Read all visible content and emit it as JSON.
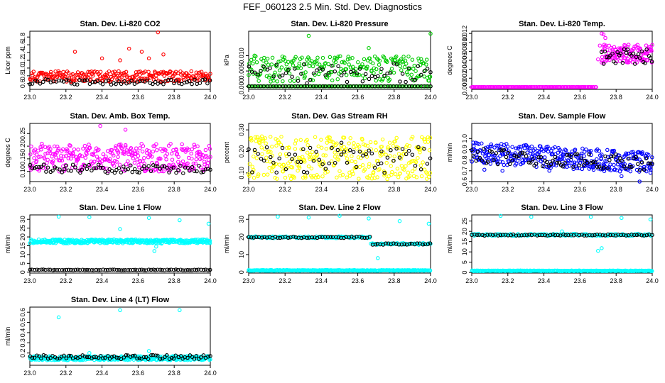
{
  "page": {
    "title": "FEF_060123  2.5 Min. Std. Dev. Diagnostics"
  },
  "colors": {
    "black": "#000000",
    "red": "#ff0000",
    "green": "#00cc00",
    "magenta": "#ff00ff",
    "yellow": "#ffff00",
    "blue": "#0000ff",
    "cyan": "#00ffff"
  },
  "chart_data": [
    {
      "type": "scatter",
      "title": "Stan. Dev. Li-820 CO2",
      "ylabel": "Licor ppm",
      "xlim": [
        23.0,
        24.0
      ],
      "ylim": [
        0.45,
        1.95
      ],
      "xticks": [
        "23.0",
        "23.2",
        "23.4",
        "23.6",
        "23.8",
        "24.0"
      ],
      "yticks": [
        "0.6",
        "0.8",
        "1.0",
        "1.2",
        "1.4",
        "1.6",
        "1.8"
      ],
      "series": [
        {
          "color": "red",
          "n": 260,
          "base": 0.78,
          "spread": 0.28,
          "seed": 11,
          "outliers": [
            [
              23.25,
              1.42
            ],
            [
              23.4,
              1.25
            ],
            [
              23.5,
              1.2
            ],
            [
              23.55,
              1.5
            ],
            [
              23.62,
              1.42
            ],
            [
              23.66,
              1.25
            ],
            [
              23.71,
              1.92
            ],
            [
              23.74,
              1.35
            ]
          ]
        },
        {
          "color": "black",
          "n": 70,
          "base": 0.64,
          "spread": 0.14,
          "seed": 12,
          "outliers": []
        }
      ]
    },
    {
      "type": "scatter",
      "title": "Stan. Dev. Li-820 Pressure",
      "ylabel": "kPa",
      "xlim": [
        23.0,
        24.0
      ],
      "ylim": [
        -0.001,
        0.018
      ],
      "xticks": [
        "23.0",
        "23.2",
        "23.4",
        "23.6",
        "23.8",
        "24.0"
      ],
      "yticks": [
        "0.000",
        "0.005",
        "0.010"
      ],
      "series": [
        {
          "color": "green",
          "n": 240,
          "base": 0.0058,
          "spread": 0.0085,
          "seed": 21,
          "outliers": [
            [
              23.33,
              0.0165
            ],
            [
              23.66,
              0.0125
            ],
            [
              24.0,
              0.0172
            ]
          ]
        },
        {
          "color": "green",
          "n": 120,
          "base": 0.0,
          "spread": 0.0,
          "seed": 22,
          "outliers": []
        },
        {
          "color": "black",
          "n": 60,
          "base": 0.0042,
          "spread": 0.0065,
          "seed": 23,
          "outliers": []
        },
        {
          "color": "black",
          "n": 60,
          "base": 0.0,
          "spread": 0.0,
          "seed": 24,
          "outliers": []
        }
      ]
    },
    {
      "type": "scatter",
      "title": "Stan. Dev. Li-820 Temp.",
      "ylabel": "degrees C",
      "xlim": [
        23.0,
        24.0
      ],
      "ylim": [
        -0.0005,
        0.0125
      ],
      "xticks": [
        "23.0",
        "23.2",
        "23.4",
        "23.6",
        "23.8",
        "24.0"
      ],
      "yticks": [
        "0.000",
        "0.002",
        "0.004",
        "0.006",
        "0.008",
        "0.010",
        "0.012"
      ],
      "series": [
        {
          "color": "magenta",
          "n": 110,
          "base": 0.0,
          "spread": 0.0,
          "seed": 31,
          "xmax": 23.69,
          "outliers": []
        },
        {
          "color": "magenta",
          "n": 130,
          "base": 0.0075,
          "spread": 0.004,
          "seed": 32,
          "xmin": 23.72,
          "outliers": [
            [
              23.7,
              0.0062
            ],
            [
              23.71,
              0.0093
            ],
            [
              23.72,
              0.012
            ],
            [
              23.73,
              0.0118
            ],
            [
              23.74,
              0.011
            ]
          ]
        },
        {
          "color": "black",
          "n": 30,
          "base": 0.0068,
          "spread": 0.0035,
          "seed": 33,
          "xmin": 23.72,
          "outliers": []
        }
      ]
    },
    {
      "type": "scatter",
      "title": "Stan. Dev. Amb. Box Temp.",
      "ylabel": "degrees C",
      "xlim": [
        23.0,
        24.0
      ],
      "ylim": [
        0.06,
        0.29
      ],
      "xticks": [
        "23.0",
        "23.2",
        "23.4",
        "23.6",
        "23.8",
        "24.0"
      ],
      "yticks": [
        "0.10",
        "0.15",
        "0.20",
        "0.25"
      ],
      "series": [
        {
          "color": "magenta",
          "n": 330,
          "base": 0.155,
          "spread": 0.11,
          "seed": 41,
          "outliers": [
            [
              23.39,
              0.28
            ],
            [
              23.53,
              0.265
            ]
          ]
        },
        {
          "color": "black",
          "n": 80,
          "base": 0.11,
          "spread": 0.035,
          "seed": 42,
          "outliers": []
        }
      ]
    },
    {
      "type": "scatter",
      "title": "Stan. Dev. Gas Stream RH",
      "ylabel": "percent",
      "xlim": [
        23.0,
        24.0
      ],
      "ylim": [
        0.06,
        0.33
      ],
      "xticks": [
        "23.0",
        "23.2",
        "23.4",
        "23.6",
        "23.8",
        "24.0"
      ],
      "yticks": [
        "0.10",
        "0.20",
        "0.30"
      ],
      "series": [
        {
          "color": "yellow",
          "n": 320,
          "base": 0.17,
          "spread": 0.2,
          "seed": 51,
          "outliers": []
        },
        {
          "color": "black",
          "n": 60,
          "base": 0.16,
          "spread": 0.12,
          "seed": 52,
          "outliers": [
            [
              23.3,
              0.21
            ],
            [
              23.51,
              0.24
            ],
            [
              23.73,
              0.2
            ]
          ]
        }
      ]
    },
    {
      "type": "scatter",
      "title": "Stan. Dev. Sample Flow",
      "ylabel": "ml/min",
      "xlim": [
        23.0,
        24.0
      ],
      "ylim": [
        0.6,
        1.14
      ],
      "xticks": [
        "23.0",
        "23.2",
        "23.4",
        "23.6",
        "23.8",
        "24.0"
      ],
      "yticks": [
        "0.6",
        "0.7",
        "0.8",
        "0.9",
        "1.0"
      ],
      "series": [
        {
          "color": "blue",
          "n": 360,
          "base": 0.87,
          "spread": 0.2,
          "seed": 61,
          "slope": -0.1,
          "outliers": [
            [
              23.07,
              0.71
            ],
            [
              23.17,
              0.7
            ],
            [
              23.43,
              0.7
            ],
            [
              23.83,
              0.65
            ],
            [
              23.93,
              0.6
            ]
          ]
        },
        {
          "color": "black",
          "n": 90,
          "base": 0.84,
          "spread": 0.14,
          "seed": 62,
          "slope": -0.07,
          "outliers": []
        }
      ]
    },
    {
      "type": "scatter",
      "title": "Stan. Dev. Line 1 Flow",
      "ylabel": "ml/min",
      "xlim": [
        23.0,
        24.0
      ],
      "ylim": [
        -0.5,
        32.5
      ],
      "xticks": [
        "23.0",
        "23.2",
        "23.4",
        "23.6",
        "23.8",
        "24.0"
      ],
      "yticks": [
        "0",
        "5",
        "10",
        "15",
        "20",
        "25",
        "30"
      ],
      "series": [
        {
          "color": "cyan",
          "n": 380,
          "base": 17.5,
          "spread": 2.2,
          "seed": 71,
          "outliers": [
            [
              23.16,
              31.5
            ],
            [
              23.33,
              31.2
            ],
            [
              23.5,
              24.5
            ],
            [
              23.66,
              30.8
            ],
            [
              23.69,
              12.0
            ],
            [
              23.7,
              14.5
            ],
            [
              23.73,
              16.2
            ],
            [
              23.83,
              29.5
            ],
            [
              23.99,
              27.5
            ]
          ]
        },
        {
          "color": "black",
          "n": 80,
          "base": 1.3,
          "spread": 0.4,
          "seed": 72,
          "outliers": []
        }
      ]
    },
    {
      "type": "scatter",
      "title": "Stan. Dev. Line 2 Flow",
      "ylabel": "ml/min",
      "xlim": [
        23.0,
        24.0
      ],
      "ylim": [
        -0.5,
        32.5
      ],
      "xticks": [
        "23.0",
        "23.2",
        "23.4",
        "23.6",
        "23.8",
        "24.0"
      ],
      "yticks": [
        "0",
        "10",
        "20",
        "30"
      ],
      "series": [
        {
          "color": "cyan",
          "n": 300,
          "base": 1.0,
          "spread": 0.4,
          "seed": 81,
          "outliers": []
        },
        {
          "color": "cyan",
          "n": 160,
          "base": 19.8,
          "spread": 1.0,
          "seed": 82,
          "step": [
            23.67,
            16.0
          ],
          "outliers": [
            [
              23.16,
              31.5
            ],
            [
              23.33,
              31.0
            ],
            [
              23.5,
              32.0
            ],
            [
              23.66,
              30.5
            ],
            [
              23.71,
              8.0
            ],
            [
              23.83,
              29.0
            ],
            [
              23.99,
              27.5
            ]
          ]
        },
        {
          "color": "black",
          "n": 70,
          "base": 19.8,
          "spread": 0.8,
          "seed": 83,
          "step": [
            23.67,
            16.0
          ],
          "outliers": []
        }
      ]
    },
    {
      "type": "scatter",
      "title": "Stan. Dev. Line 3 Flow",
      "ylabel": "ml/min",
      "xlim": [
        23.0,
        24.0
      ],
      "ylim": [
        -0.3,
        28
      ],
      "xticks": [
        "23.0",
        "23.2",
        "23.4",
        "23.6",
        "23.8",
        "24.0"
      ],
      "yticks": [
        "0",
        "5",
        "10",
        "15",
        "20",
        "25"
      ],
      "series": [
        {
          "color": "cyan",
          "n": 300,
          "base": 0.8,
          "spread": 0.3,
          "seed": 91,
          "outliers": []
        },
        {
          "color": "cyan",
          "n": 160,
          "base": 18.3,
          "spread": 0.9,
          "seed": 92,
          "outliers": [
            [
              23.16,
              27.5
            ],
            [
              23.33,
              27.0
            ],
            [
              23.5,
              20.0
            ],
            [
              23.66,
              27.0
            ],
            [
              23.7,
              10.5
            ],
            [
              23.72,
              11.8
            ],
            [
              23.83,
              26.5
            ],
            [
              23.99,
              25.8
            ]
          ]
        },
        {
          "color": "black",
          "n": 70,
          "base": 18.2,
          "spread": 0.6,
          "seed": 93,
          "outliers": []
        }
      ]
    },
    {
      "type": "scatter",
      "title": "Stan. Dev. Line 4 (LT) Flow",
      "ylabel": "ml/min",
      "xlim": [
        23.0,
        24.0
      ],
      "ylim": [
        0.08,
        0.65
      ],
      "xticks": [
        "23.0",
        "23.2",
        "23.4",
        "23.6",
        "23.8",
        "24.0"
      ],
      "yticks": [
        "0.2",
        "0.3",
        "0.4",
        "0.5",
        "0.6"
      ],
      "series": [
        {
          "color": "cyan",
          "n": 380,
          "base": 0.15,
          "spread": 0.04,
          "seed": 101,
          "outliers": [
            [
              23.16,
              0.55
            ],
            [
              23.5,
              0.62
            ],
            [
              23.83,
              0.62
            ],
            [
              23.33,
              0.2
            ],
            [
              23.66,
              0.22
            ]
          ]
        },
        {
          "color": "black",
          "n": 80,
          "base": 0.16,
          "spread": 0.04,
          "seed": 102,
          "outliers": []
        }
      ]
    }
  ]
}
